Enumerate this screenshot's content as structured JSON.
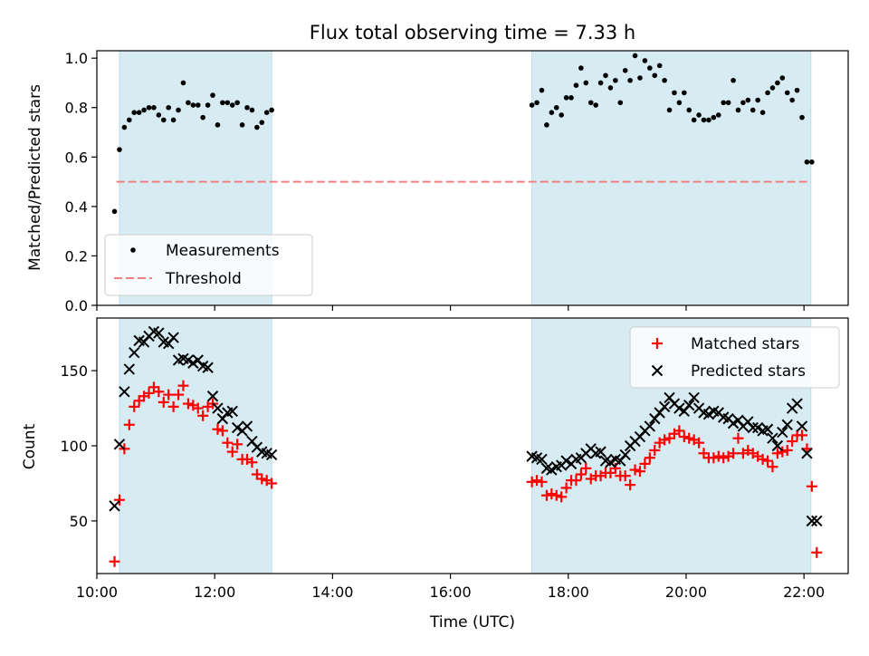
{
  "chart_data": [
    {
      "type": "scatter",
      "title": "Flux total observing time = 7.33 h",
      "ylabel": "Matched/Predicted stars",
      "xlabel": "",
      "xlim": [
        "10:00",
        "22:45"
      ],
      "ylim": [
        0,
        1.03
      ],
      "yticks": [
        "0.0",
        "0.2",
        "0.4",
        "0.6",
        "0.8",
        "1.0"
      ],
      "ytick_values": [
        0,
        0.2,
        0.4,
        0.6,
        0.8,
        1.0
      ],
      "shaded_intervals": [
        [
          "10:23",
          "12:58"
        ],
        [
          "17:23",
          "22:07"
        ]
      ],
      "legend": {
        "placement": "lower-left",
        "entries": [
          {
            "label": "Measurements",
            "marker": "dot",
            "color": "#000000"
          },
          {
            "label": "Threshold",
            "marker": "dashed-line",
            "color": "#f08080"
          }
        ]
      },
      "threshold": {
        "name": "Threshold",
        "y": 0.5,
        "x_range": [
          "10:20",
          "22:07"
        ],
        "color": "#f08080"
      },
      "series": [
        {
          "name": "Measurements",
          "color": "#000000",
          "x": [
            "10:18",
            "10:23",
            "10:28",
            "10:33",
            "10:38",
            "10:43",
            "10:48",
            "10:53",
            "10:58",
            "11:03",
            "11:08",
            "11:13",
            "11:18",
            "11:23",
            "11:28",
            "11:33",
            "11:38",
            "11:43",
            "11:48",
            "11:53",
            "11:58",
            "12:03",
            "12:08",
            "12:13",
            "12:18",
            "12:23",
            "12:28",
            "12:33",
            "12:38",
            "12:43",
            "12:48",
            "12:53",
            "12:58",
            "17:23",
            "17:28",
            "17:33",
            "17:38",
            "17:43",
            "17:48",
            "17:53",
            "17:58",
            "18:03",
            "18:08",
            "18:13",
            "18:18",
            "18:23",
            "18:28",
            "18:33",
            "18:38",
            "18:43",
            "18:48",
            "18:53",
            "18:58",
            "19:03",
            "19:08",
            "19:13",
            "19:18",
            "19:23",
            "19:28",
            "19:33",
            "19:38",
            "19:43",
            "19:48",
            "19:53",
            "19:58",
            "20:03",
            "20:08",
            "20:13",
            "20:18",
            "20:23",
            "20:28",
            "20:33",
            "20:38",
            "20:43",
            "20:48",
            "20:53",
            "20:58",
            "21:03",
            "21:08",
            "21:13",
            "21:18",
            "21:23",
            "21:28",
            "21:33",
            "21:38",
            "21:43",
            "21:48",
            "21:53",
            "21:58",
            "22:03",
            "22:08"
          ],
          "y": [
            0.38,
            0.63,
            0.72,
            0.75,
            0.78,
            0.78,
            0.79,
            0.8,
            0.8,
            0.77,
            0.75,
            0.8,
            0.75,
            0.79,
            0.9,
            0.82,
            0.81,
            0.81,
            0.76,
            0.81,
            0.85,
            0.73,
            0.82,
            0.82,
            0.81,
            0.82,
            0.73,
            0.8,
            0.79,
            0.72,
            0.74,
            0.78,
            0.79,
            0.81,
            0.82,
            0.87,
            0.73,
            0.78,
            0.8,
            0.77,
            0.84,
            0.84,
            0.89,
            0.96,
            0.9,
            0.82,
            0.81,
            0.9,
            0.93,
            0.88,
            0.91,
            0.82,
            0.95,
            0.91,
            1.01,
            0.92,
            0.99,
            0.96,
            0.93,
            0.97,
            0.91,
            0.79,
            0.86,
            0.82,
            0.86,
            0.79,
            0.75,
            0.77,
            0.75,
            0.75,
            0.76,
            0.77,
            0.82,
            0.82,
            0.91,
            0.79,
            0.82,
            0.83,
            0.79,
            0.83,
            0.78,
            0.86,
            0.88,
            0.9,
            0.92,
            0.86,
            0.83,
            0.87,
            0.76,
            0.58,
            0.58
          ]
        }
      ]
    },
    {
      "type": "scatter",
      "title": "",
      "ylabel": "Count",
      "xlabel": "Time (UTC)",
      "xlim": [
        "10:00",
        "22:45"
      ],
      "ylim": [
        15,
        185
      ],
      "yticks": [
        "50",
        "100",
        "150"
      ],
      "ytick_values": [
        50,
        100,
        150
      ],
      "xticks": [
        "10:00",
        "12:00",
        "14:00",
        "16:00",
        "18:00",
        "20:00",
        "22:00"
      ],
      "shaded_intervals": [
        [
          "10:23",
          "12:58"
        ],
        [
          "17:23",
          "22:07"
        ]
      ],
      "legend": {
        "placement": "upper-right",
        "entries": [
          {
            "label": "Matched stars",
            "marker": "plus",
            "color": "#ff0000"
          },
          {
            "label": "Predicted stars",
            "marker": "x",
            "color": "#000000"
          }
        ]
      },
      "series": [
        {
          "name": "Matched stars",
          "color": "#ff0000",
          "x": [
            "10:18",
            "10:23",
            "10:28",
            "10:33",
            "10:38",
            "10:43",
            "10:48",
            "10:53",
            "10:58",
            "11:03",
            "11:08",
            "11:13",
            "11:18",
            "11:23",
            "11:28",
            "11:33",
            "11:38",
            "11:43",
            "11:48",
            "11:53",
            "11:58",
            "12:03",
            "12:08",
            "12:13",
            "12:18",
            "12:23",
            "12:28",
            "12:33",
            "12:38",
            "12:43",
            "12:48",
            "12:53",
            "12:58",
            "17:23",
            "17:28",
            "17:33",
            "17:38",
            "17:43",
            "17:48",
            "17:53",
            "17:58",
            "18:03",
            "18:08",
            "18:13",
            "18:18",
            "18:23",
            "18:28",
            "18:33",
            "18:38",
            "18:43",
            "18:48",
            "18:53",
            "18:58",
            "19:03",
            "19:08",
            "19:13",
            "19:18",
            "19:23",
            "19:28",
            "19:33",
            "19:38",
            "19:43",
            "19:48",
            "19:53",
            "19:58",
            "20:03",
            "20:08",
            "20:13",
            "20:18",
            "20:23",
            "20:28",
            "20:33",
            "20:38",
            "20:43",
            "20:48",
            "20:53",
            "20:58",
            "21:03",
            "21:08",
            "21:13",
            "21:18",
            "21:23",
            "21:28",
            "21:33",
            "21:38",
            "21:43",
            "21:48",
            "21:53",
            "21:58",
            "22:03",
            "22:08",
            "22:13"
          ],
          "y": [
            23,
            64,
            98,
            114,
            126,
            130,
            133,
            135,
            139,
            136,
            129,
            134,
            126,
            134,
            140,
            128,
            127,
            125,
            120,
            126,
            128,
            111,
            110,
            102,
            96,
            101,
            91,
            91,
            89,
            81,
            78,
            77,
            75,
            76,
            77,
            76,
            67,
            68,
            67,
            66,
            72,
            77,
            77,
            81,
            85,
            78,
            80,
            80,
            82,
            82,
            85,
            80,
            80,
            74,
            84,
            83,
            88,
            92,
            97,
            102,
            104,
            105,
            108,
            110,
            106,
            105,
            104,
            102,
            95,
            92,
            92,
            93,
            92,
            93,
            95,
            105,
            95,
            97,
            95,
            93,
            91,
            90,
            86,
            95,
            96,
            97,
            103,
            107,
            107,
            98,
            73,
            29
          ]
        },
        {
          "name": "Predicted stars",
          "color": "#000000",
          "x": [
            "10:18",
            "10:23",
            "10:28",
            "10:33",
            "10:38",
            "10:43",
            "10:48",
            "10:53",
            "10:58",
            "11:03",
            "11:08",
            "11:13",
            "11:18",
            "11:23",
            "11:28",
            "11:33",
            "11:38",
            "11:43",
            "11:48",
            "11:53",
            "11:58",
            "12:03",
            "12:08",
            "12:13",
            "12:18",
            "12:23",
            "12:28",
            "12:33",
            "12:38",
            "12:43",
            "12:48",
            "12:53",
            "12:58",
            "17:23",
            "17:28",
            "17:33",
            "17:38",
            "17:43",
            "17:48",
            "17:53",
            "17:58",
            "18:03",
            "18:08",
            "18:13",
            "18:18",
            "18:23",
            "18:28",
            "18:33",
            "18:38",
            "18:43",
            "18:48",
            "18:53",
            "18:58",
            "19:03",
            "19:08",
            "19:13",
            "19:18",
            "19:23",
            "19:28",
            "19:33",
            "19:38",
            "19:43",
            "19:48",
            "19:53",
            "19:58",
            "20:03",
            "20:08",
            "20:13",
            "20:18",
            "20:23",
            "20:28",
            "20:33",
            "20:38",
            "20:43",
            "20:48",
            "20:53",
            "20:58",
            "21:03",
            "21:08",
            "21:13",
            "21:18",
            "21:23",
            "21:28",
            "21:33",
            "21:38",
            "21:43",
            "21:48",
            "21:53",
            "21:58",
            "22:03",
            "22:08",
            "22:13"
          ],
          "y": [
            60,
            101,
            136,
            151,
            162,
            170,
            169,
            173,
            176,
            175,
            169,
            168,
            172,
            157,
            158,
            157,
            155,
            157,
            153,
            152,
            133,
            125,
            118,
            122,
            123,
            112,
            110,
            113,
            103,
            99,
            96,
            95,
            94,
            93,
            92,
            91,
            85,
            84,
            86,
            87,
            90,
            88,
            91,
            92,
            95,
            98,
            95,
            96,
            90,
            89,
            91,
            90,
            94,
            100,
            103,
            106,
            110,
            113,
            118,
            122,
            126,
            132,
            128,
            125,
            123,
            127,
            132,
            125,
            122,
            121,
            123,
            122,
            119,
            118,
            115,
            117,
            113,
            116,
            112,
            112,
            110,
            111,
            105,
            100,
            109,
            114,
            125,
            128,
            113,
            95,
            50,
            50
          ]
        }
      ]
    }
  ]
}
